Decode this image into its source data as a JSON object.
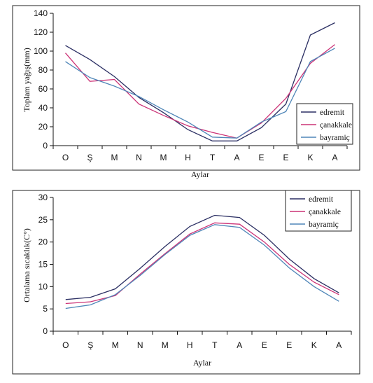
{
  "chart_data": [
    {
      "type": "line",
      "title": "",
      "xlabel": "Aylar",
      "ylabel": "Toplam yağış(mm)",
      "categories": [
        "O",
        "Ş",
        "M",
        "N",
        "M",
        "H",
        "T",
        "A",
        "E",
        "E",
        "K",
        "A"
      ],
      "ylim": [
        0,
        140
      ],
      "yticks": [
        0,
        20,
        40,
        60,
        80,
        100,
        120,
        140
      ],
      "grid": false,
      "legend_position": "right",
      "series": [
        {
          "name": "edremit",
          "color": "#2b2f63",
          "values": [
            106,
            91,
            73,
            51,
            35,
            17,
            5,
            5,
            19,
            44,
            117,
            130
          ]
        },
        {
          "name": "çanakkale",
          "color": "#cc3377",
          "values": [
            98,
            68,
            70,
            44,
            32,
            21,
            14,
            8,
            24,
            50,
            87,
            107
          ]
        },
        {
          "name": "bayramiç",
          "color": "#4f86b8",
          "values": [
            89,
            72,
            63,
            52,
            38,
            25,
            9,
            8,
            25,
            36,
            89,
            103
          ]
        }
      ]
    },
    {
      "type": "line",
      "title": "",
      "xlabel": "Aylar",
      "ylabel": "Ortalama sıcaklık(C°)",
      "categories": [
        "O",
        "Ş",
        "M",
        "N",
        "M",
        "H",
        "T",
        "A",
        "E",
        "E",
        "K",
        "A"
      ],
      "ylim": [
        0,
        30
      ],
      "yticks": [
        0,
        5,
        10,
        15,
        20,
        25,
        30
      ],
      "grid": false,
      "legend_position": "top-right",
      "series": [
        {
          "name": "edremit",
          "color": "#2b2f63",
          "values": [
            7.1,
            7.6,
            9.5,
            14.1,
            19.0,
            23.5,
            26.0,
            25.5,
            21.5,
            16.2,
            11.8,
            8.6
          ]
        },
        {
          "name": "çanakkale",
          "color": "#cc3377",
          "values": [
            6.2,
            6.6,
            8.0,
            12.8,
            17.4,
            21.8,
            24.3,
            24.0,
            20.0,
            15.0,
            11.0,
            8.2
          ]
        },
        {
          "name": "bayramiç",
          "color": "#4f86b8",
          "values": [
            5.1,
            5.9,
            8.2,
            12.5,
            17.2,
            21.5,
            23.9,
            23.3,
            19.3,
            14.2,
            10.0,
            6.7
          ]
        }
      ]
    }
  ]
}
